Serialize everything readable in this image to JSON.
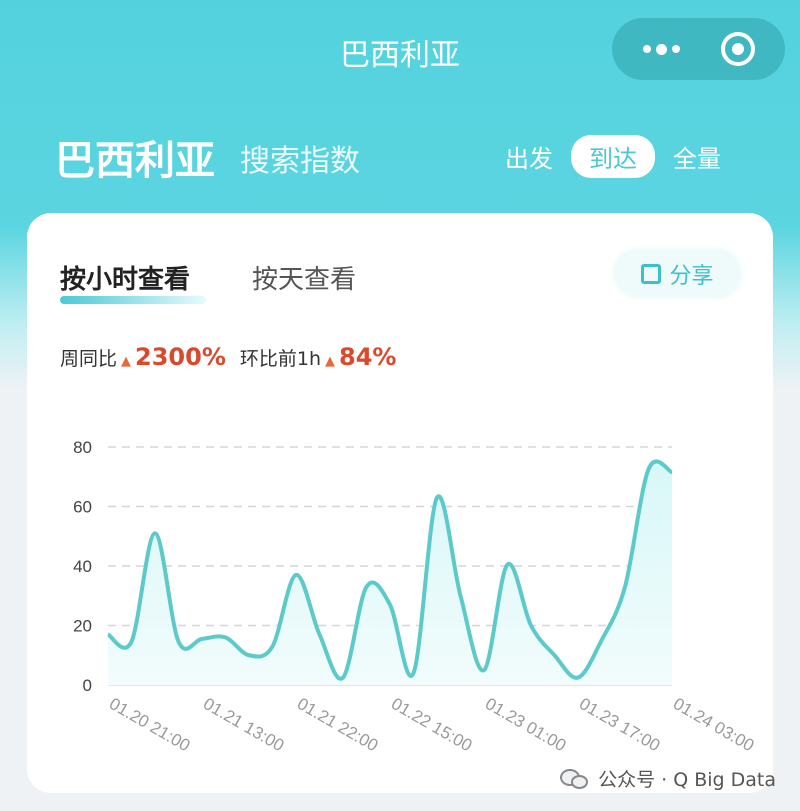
{
  "nav": {
    "title": "巴西利亚",
    "more_icon": "more-dots-icon",
    "close_icon": "target-circle-icon"
  },
  "header": {
    "city": "巴西利亚",
    "subtitle": "搜索指数",
    "toggle": [
      {
        "label": "出发",
        "active": false
      },
      {
        "label": "到达",
        "active": true
      },
      {
        "label": "全量",
        "active": false
      }
    ]
  },
  "card": {
    "tabs": [
      {
        "label": "按小时查看",
        "active": true
      },
      {
        "label": "按天查看",
        "active": false
      }
    ],
    "share_label": "分享",
    "stats": [
      {
        "label": "周同比",
        "value": "2300%",
        "trend": "up"
      },
      {
        "label": "环比前1h",
        "value": "84%",
        "trend": "up"
      }
    ]
  },
  "colors": {
    "accent": "#4cc8d6",
    "line": "#5ccaca",
    "up": "#d9492c"
  },
  "chart_data": {
    "type": "area",
    "x_ticks": [
      "01.20 21:00",
      "01.21 13:00",
      "01.21 22:00",
      "01.22 15:00",
      "01.23 01:00",
      "01.23 17:00",
      "01.24 03:00"
    ],
    "values": [
      17,
      14.6,
      51,
      14.6,
      15.5,
      16,
      10,
      13,
      37,
      17,
      2.5,
      33,
      27,
      4,
      63,
      30,
      5,
      40.5,
      20,
      10,
      2.5,
      15,
      33,
      72.5,
      71.5
    ],
    "ylim": [
      0,
      80
    ],
    "y_ticks": [
      0,
      20,
      40,
      60,
      80
    ],
    "grid": true
  },
  "watermark": "公众号 · Q Big Data"
}
